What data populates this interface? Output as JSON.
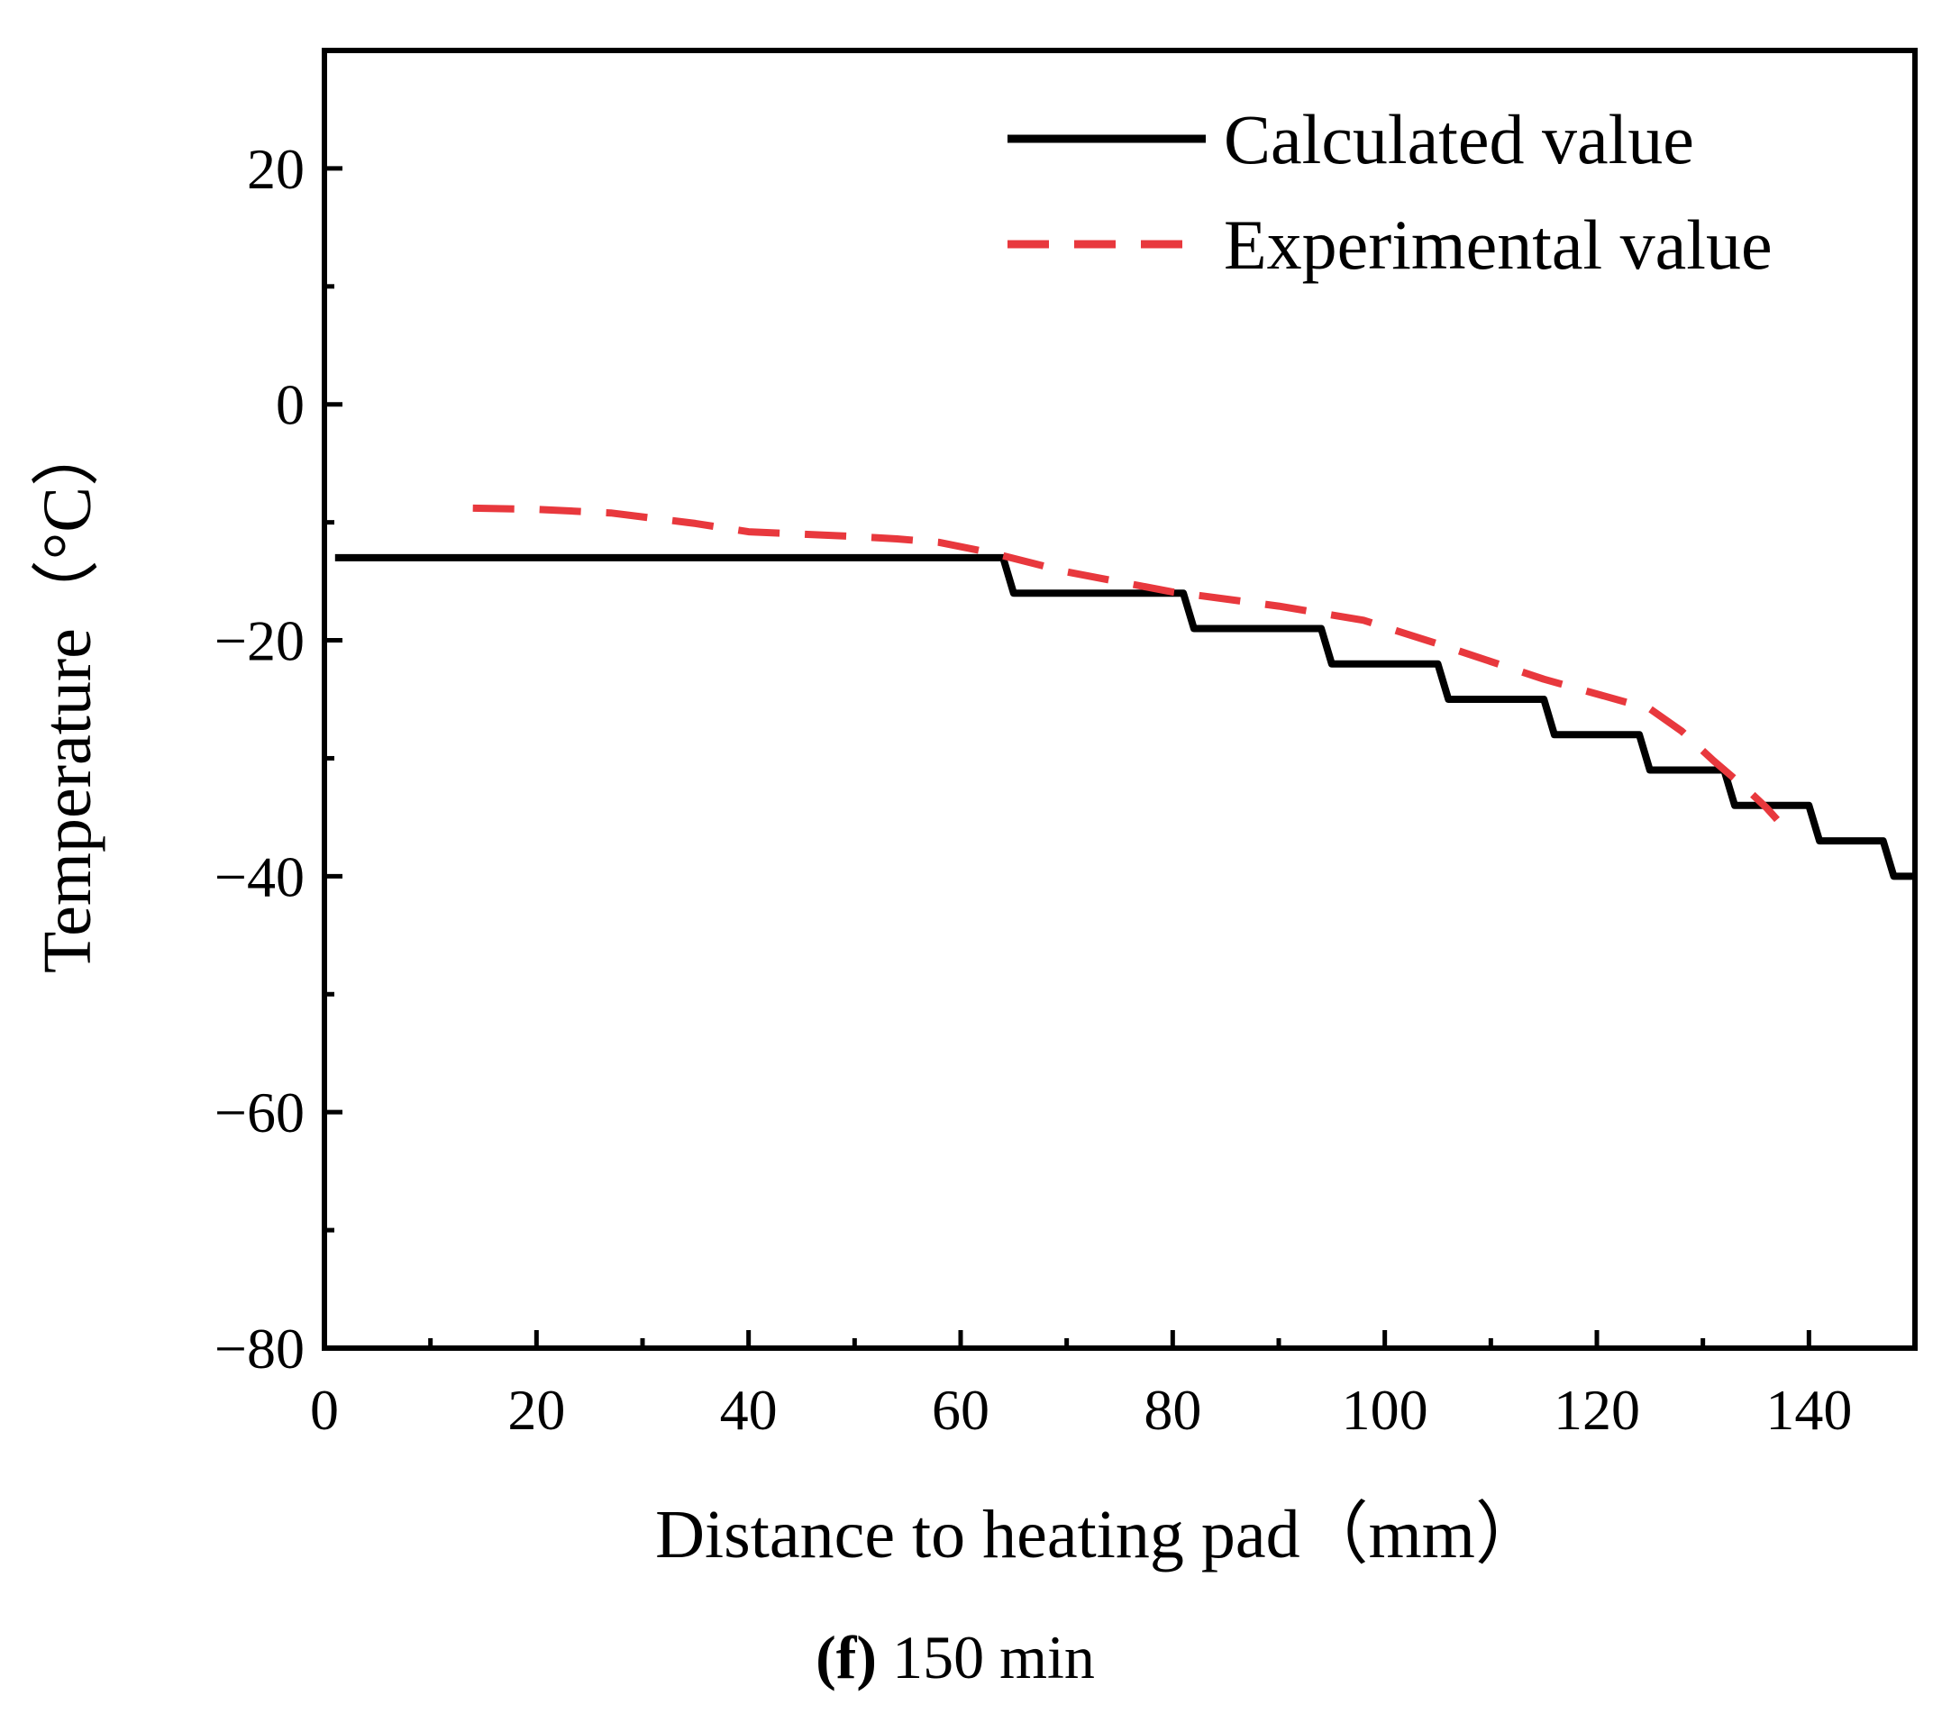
{
  "chart_data": {
    "type": "line",
    "title": "",
    "caption_prefix": "(f)",
    "caption_rest": " 150 min",
    "xlabel": "Distance to heating pad（mm）",
    "ylabel": "Temperature（°C）",
    "xlim": [
      0,
      150
    ],
    "ylim": [
      -80,
      30
    ],
    "xticks": [
      0,
      20,
      40,
      60,
      80,
      100,
      120,
      140
    ],
    "xtick_labels": [
      "0",
      "20",
      "40",
      "60",
      "80",
      "100",
      "120",
      "140"
    ],
    "xminor": [
      10,
      30,
      50,
      70,
      90,
      110,
      130
    ],
    "yticks": [
      -80,
      -60,
      -40,
      -20,
      0,
      20
    ],
    "ytick_labels": [
      "−80",
      "−60",
      "−40",
      "−20",
      "0",
      "20"
    ],
    "yminor": [
      -70,
      -50,
      -30,
      -10,
      10
    ],
    "grid": false,
    "legend_position": "top-right",
    "series": [
      {
        "name": "Calculated value",
        "color": "#000000",
        "dash": "solid",
        "x": [
          1,
          64,
          65,
          81,
          82,
          94,
          95,
          105,
          106,
          115,
          116,
          124,
          125,
          132,
          133,
          140,
          141,
          147,
          148,
          150
        ],
        "y": [
          -13,
          -13,
          -16,
          -16,
          -19,
          -19,
          -22,
          -22,
          -25,
          -25,
          -28,
          -28,
          -31,
          -31,
          -34,
          -34,
          -37,
          -37,
          -40,
          -40
        ]
      },
      {
        "name": "Experimental value",
        "color": "#e8383d",
        "dash": "dashed",
        "x": [
          14,
          20,
          27,
          35,
          40,
          50,
          54,
          58,
          63,
          70,
          80,
          90,
          98,
          105,
          115,
          125,
          128,
          131,
          134,
          136,
          137
        ],
        "y": [
          -8.8,
          -8.9,
          -9.2,
          -10.1,
          -10.8,
          -11.2,
          -11.4,
          -11.7,
          -12.6,
          -14.2,
          -15.9,
          -17.1,
          -18.3,
          -20.3,
          -23.3,
          -25.8,
          -27.7,
          -30.2,
          -32.5,
          -34.2,
          -35.2
        ]
      }
    ]
  }
}
